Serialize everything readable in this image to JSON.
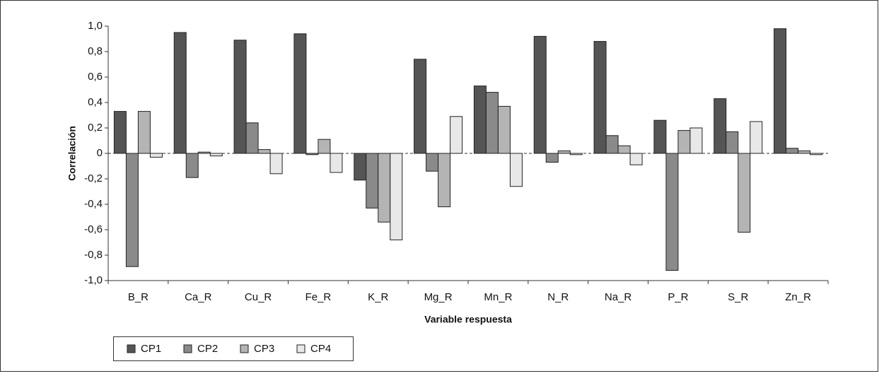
{
  "chart_data": {
    "type": "bar",
    "x_label": "Variable respuesta",
    "y_label": "Correlación",
    "categories": [
      "B_R",
      "Ca_R",
      "Cu_R",
      "Fe_R",
      "K_R",
      "Mg_R",
      "Mn_R",
      "N_R",
      "Na_R",
      "P_R",
      "S_R",
      "Zn_R"
    ],
    "series": [
      {
        "name": "CP1",
        "color": "#555555",
        "values": [
          0.33,
          0.95,
          0.89,
          0.94,
          -0.21,
          0.74,
          0.53,
          0.92,
          0.88,
          0.26,
          0.43,
          0.98
        ]
      },
      {
        "name": "CP2",
        "color": "#8a8a8a",
        "values": [
          -0.89,
          -0.19,
          0.24,
          -0.01,
          -0.43,
          -0.14,
          0.48,
          -0.07,
          0.14,
          -0.92,
          0.17,
          0.04
        ]
      },
      {
        "name": "CP3",
        "color": "#b4b4b4",
        "values": [
          0.33,
          0.01,
          0.03,
          0.11,
          -0.54,
          -0.42,
          0.37,
          0.02,
          0.06,
          0.18,
          -0.62,
          0.02
        ]
      },
      {
        "name": "CP4",
        "color": "#e8e8e8",
        "values": [
          -0.03,
          -0.02,
          -0.16,
          -0.15,
          -0.68,
          0.29,
          -0.26,
          -0.01,
          -0.09,
          0.2,
          0.25,
          -0.01
        ]
      }
    ],
    "ylim": [
      -1.0,
      1.0
    ],
    "yticks": [
      {
        "value": -1.0,
        "label": "-1,0"
      },
      {
        "value": -0.8,
        "label": "-0,8"
      },
      {
        "value": -0.6,
        "label": "-0,6"
      },
      {
        "value": -0.4,
        "label": "-0,4"
      },
      {
        "value": -0.2,
        "label": "-0,2"
      },
      0,
      {
        "value": 0.2,
        "label": "0,2"
      },
      {
        "value": 0.4,
        "label": "0,4"
      },
      {
        "value": 0.6,
        "label": "0,6"
      },
      {
        "value": 0.8,
        "label": "0,8"
      },
      {
        "value": 1.0,
        "label": "1,0"
      }
    ],
    "legend": "bottom-left"
  }
}
